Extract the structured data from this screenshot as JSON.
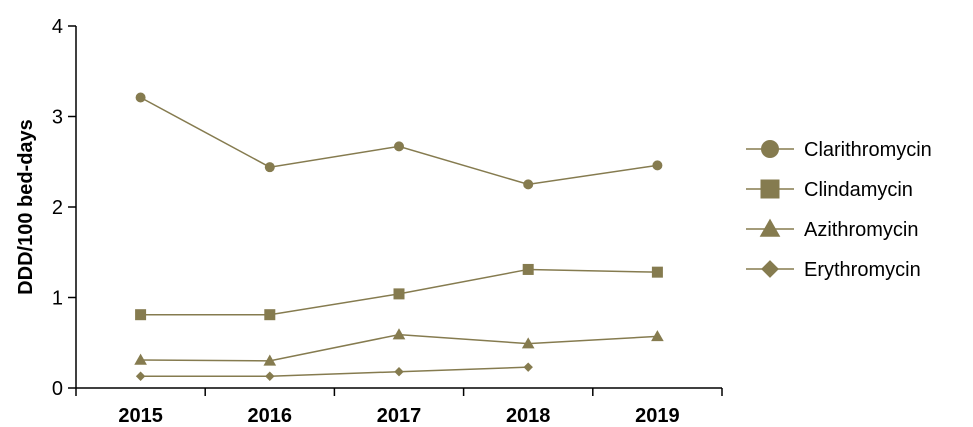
{
  "chart_data": {
    "type": "line",
    "title": "",
    "xlabel": "",
    "ylabel": "DDD/100 bed-days",
    "categories": [
      "2015",
      "2016",
      "2017",
      "2018",
      "2019"
    ],
    "ylim": [
      0,
      4
    ],
    "yticks": [
      "0",
      "1",
      "2",
      "3",
      "4"
    ],
    "grid": false,
    "legend_position": "right",
    "color": "#857b4f",
    "series": [
      {
        "name": "Clarithromycin",
        "marker": "circle",
        "values": [
          3.21,
          2.44,
          2.67,
          2.25,
          2.46
        ]
      },
      {
        "name": "Clindamycin",
        "marker": "square",
        "values": [
          0.81,
          0.81,
          1.04,
          1.31,
          1.28
        ]
      },
      {
        "name": "Azithromycin",
        "marker": "triangle",
        "values": [
          0.31,
          0.3,
          0.59,
          0.49,
          0.57
        ]
      },
      {
        "name": "Erythromycin",
        "marker": "diamond",
        "values": [
          0.13,
          0.13,
          0.18,
          0.23,
          null
        ]
      }
    ]
  }
}
